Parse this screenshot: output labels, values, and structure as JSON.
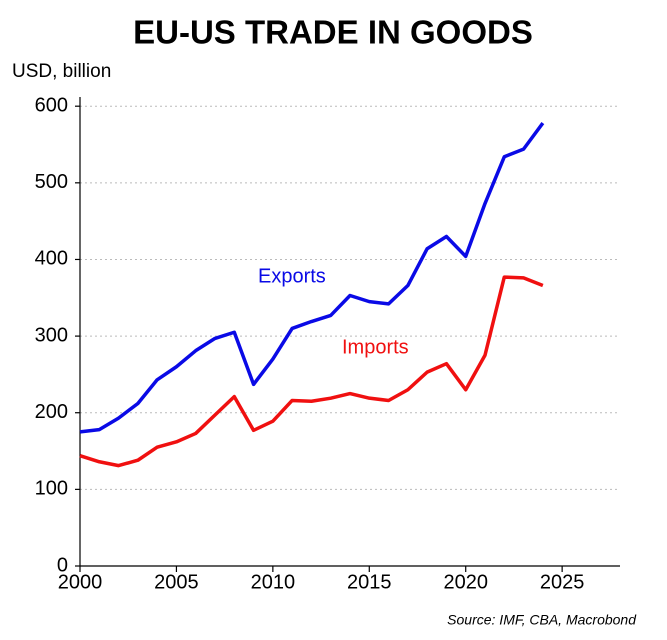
{
  "chart_data": {
    "type": "line",
    "title": "EU-US TRADE IN GOODS",
    "y_label": "USD, billion",
    "source": "Source: IMF, CBA, Macrobond",
    "x": [
      2000,
      2001,
      2002,
      2003,
      2004,
      2005,
      2006,
      2007,
      2008,
      2009,
      2010,
      2011,
      2012,
      2013,
      2014,
      2015,
      2016,
      2017,
      2018,
      2019,
      2020,
      2021,
      2022,
      2023,
      2024
    ],
    "series": [
      {
        "name": "Exports",
        "color": "#0a0ae6",
        "values": [
          175,
          178,
          193,
          212,
          243,
          260,
          281,
          297,
          305,
          237,
          270,
          310,
          319,
          327,
          353,
          345,
          342,
          366,
          414,
          430,
          404,
          473,
          534,
          544,
          578
        ]
      },
      {
        "name": "Imports",
        "color": "#f01010",
        "values": [
          144,
          136,
          131,
          138,
          155,
          162,
          173,
          197,
          221,
          177,
          189,
          216,
          215,
          219,
          225,
          219,
          216,
          230,
          253,
          264,
          230,
          275,
          377,
          376,
          366
        ]
      }
    ],
    "xlim": [
      2000,
      2028
    ],
    "xticks": [
      2000,
      2005,
      2010,
      2015,
      2020,
      2025
    ],
    "ylim": [
      0,
      612
    ],
    "yticks": [
      0,
      100,
      200,
      300,
      400,
      500,
      600
    ],
    "grid": true
  }
}
